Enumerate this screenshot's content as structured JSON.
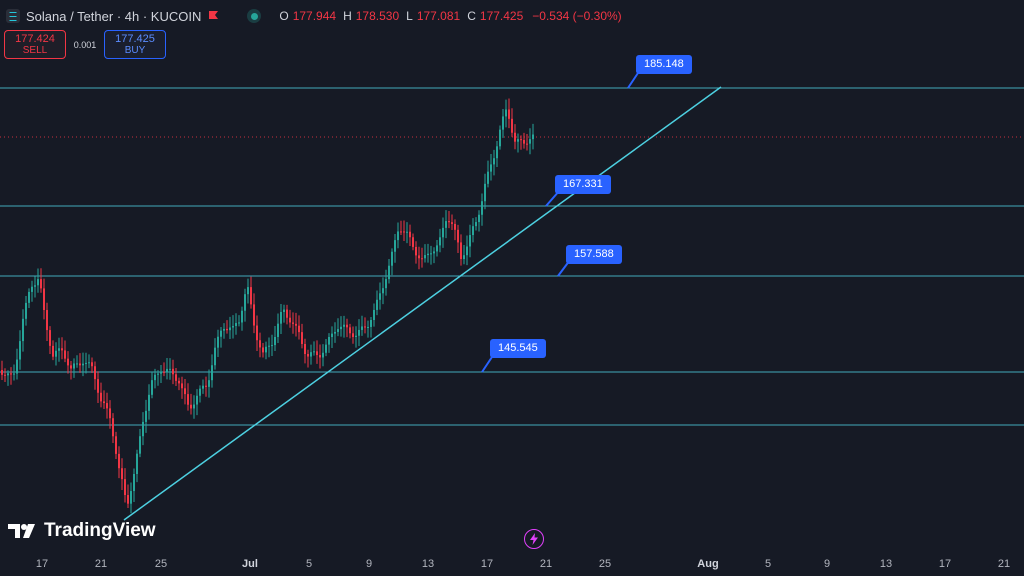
{
  "header": {
    "title": "Solana / Tether · 4h · KUCOIN",
    "ohlc": [
      {
        "key": "O",
        "value": "177.944"
      },
      {
        "key": "H",
        "value": "178.530"
      },
      {
        "key": "L",
        "value": "177.081"
      },
      {
        "key": "C",
        "value": "177.425"
      }
    ],
    "change": "−0.534 (−0.30%)",
    "status_color": "#26a69a"
  },
  "trade": {
    "sell_price": "177.424",
    "sell_label": "SELL",
    "spread": "0.001",
    "buy_price": "177.425",
    "buy_label": "BUY"
  },
  "price_labels": [
    "185.148",
    "167.331",
    "157.588",
    "145.545"
  ],
  "x_axis_labels": [
    "17",
    "21",
    "25",
    "Jul",
    "5",
    "9",
    "13",
    "17",
    "21",
    "25",
    "Aug",
    "5",
    "9",
    "13",
    "17",
    "21"
  ],
  "brand": "TradingView",
  "icons": {
    "symbol": "solana-icon",
    "flag": "flag-icon",
    "status": "market-open-dot-icon",
    "flash": "lightning-icon"
  },
  "colors": {
    "up": "#26a69a",
    "down": "#f23645",
    "level_line": "#4dd0e1",
    "label_bg": "#2962ff"
  }
}
